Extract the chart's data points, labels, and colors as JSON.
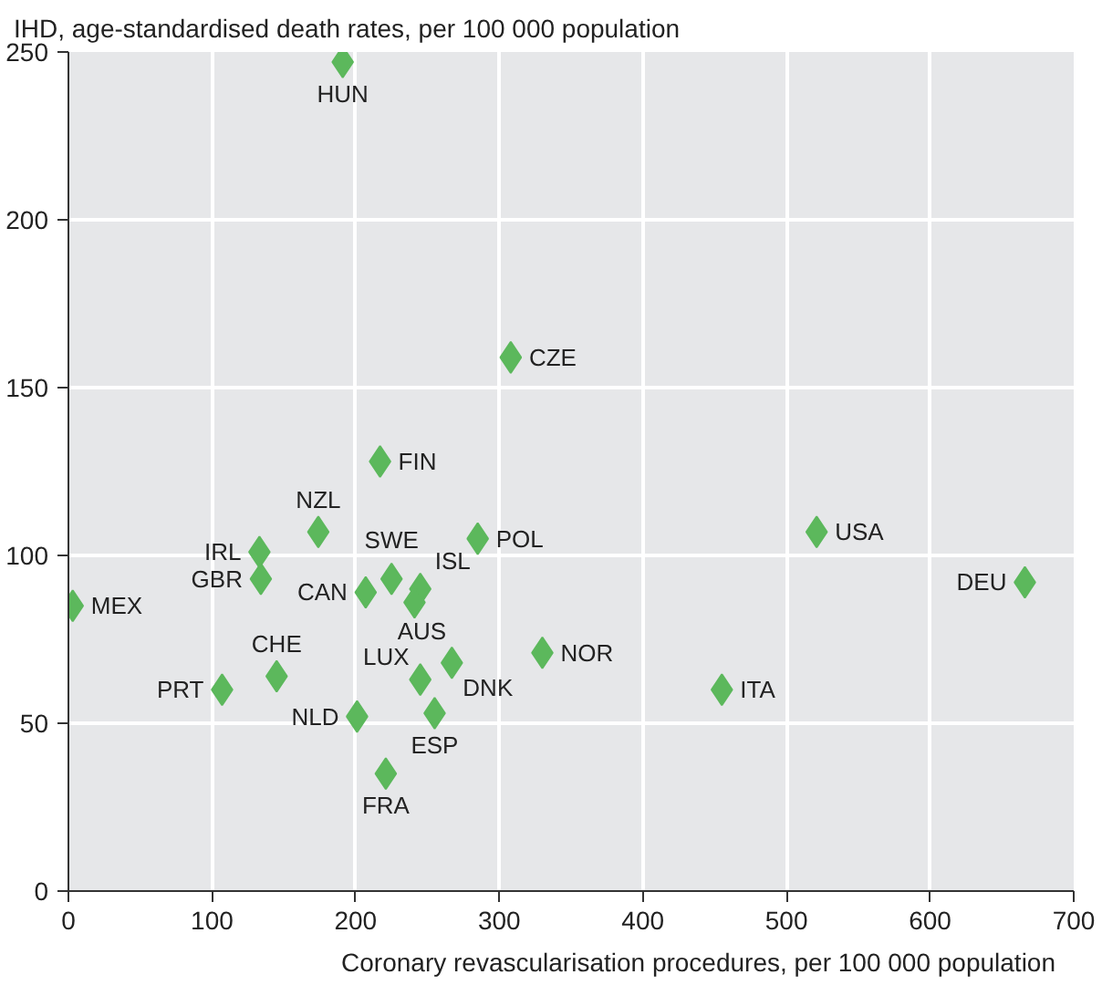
{
  "chart_data": {
    "type": "scatter",
    "title": "IHD, age-standardised death rates, per 100 000 population",
    "xlabel": "Coronary revascularisation procedures, per 100 000 population",
    "x": [
      191,
      308,
      217,
      174,
      133,
      134,
      225,
      207,
      245,
      241,
      285,
      3,
      145,
      107,
      245,
      267,
      330,
      201,
      255,
      221,
      455,
      521,
      666
    ],
    "values": [
      247,
      159,
      128,
      107,
      101,
      93,
      93,
      89,
      90,
      86,
      105,
      85,
      64,
      60,
      63,
      68,
      71,
      52,
      53,
      35,
      60,
      107,
      92
    ],
    "color": "#5cb85c",
    "marker": "diamond",
    "xlim": [
      0,
      700
    ],
    "ylim": [
      0,
      250
    ],
    "xticks": [
      0,
      100,
      200,
      300,
      400,
      500,
      600,
      700
    ],
    "yticks": [
      0,
      50,
      100,
      150,
      200,
      250
    ],
    "grid": true,
    "annotations": [
      {
        "text": "HUN",
        "x": 191,
        "y": 247
      },
      {
        "text": "CZE",
        "x": 308,
        "y": 159
      },
      {
        "text": "FIN",
        "x": 217,
        "y": 128
      },
      {
        "text": "NZL",
        "x": 174,
        "y": 107
      },
      {
        "text": "IRL",
        "x": 133,
        "y": 101
      },
      {
        "text": "GBR",
        "x": 134,
        "y": 93
      },
      {
        "text": "SWE",
        "x": 225,
        "y": 93
      },
      {
        "text": "CAN",
        "x": 207,
        "y": 89
      },
      {
        "text": "ISL",
        "x": 245,
        "y": 90
      },
      {
        "text": "AUS",
        "x": 241,
        "y": 86
      },
      {
        "text": "POL",
        "x": 285,
        "y": 105
      },
      {
        "text": "MEX",
        "x": 3,
        "y": 85
      },
      {
        "text": "CHE",
        "x": 145,
        "y": 64
      },
      {
        "text": "PRT",
        "x": 107,
        "y": 60
      },
      {
        "text": "LUX",
        "x": 245,
        "y": 63
      },
      {
        "text": "DNK",
        "x": 267,
        "y": 68
      },
      {
        "text": "NOR",
        "x": 330,
        "y": 71
      },
      {
        "text": "NLD",
        "x": 201,
        "y": 52
      },
      {
        "text": "ESP",
        "x": 255,
        "y": 53
      },
      {
        "text": "FRA",
        "x": 221,
        "y": 35
      },
      {
        "text": "ITA",
        "x": 455,
        "y": 60
      },
      {
        "text": "USA",
        "x": 521,
        "y": 107
      },
      {
        "text": "DEU",
        "x": 666,
        "y": 92
      }
    ]
  }
}
